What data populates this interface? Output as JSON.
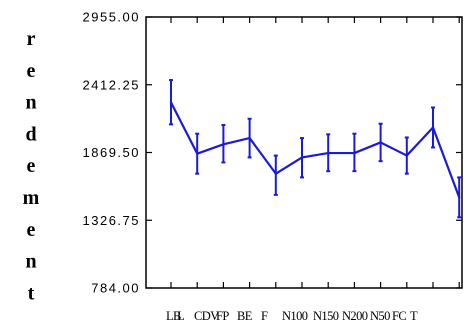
{
  "chart_data": {
    "type": "line",
    "title": "",
    "xlabel": "",
    "ylabel": "rendement",
    "categories": [
      "LB",
      "L",
      "CDV",
      "FP",
      "BE",
      "F",
      "N100",
      "N150",
      "N200",
      "N50",
      "FC",
      "T"
    ],
    "x_tick_labels": [
      "LB",
      "L",
      "CDV",
      "FP",
      "BE",
      "F",
      "N100",
      "N150",
      "N200",
      "N50",
      "FC",
      "T"
    ],
    "series": [
      {
        "values": [
          2271,
          1860,
          1935,
          1985,
          1700,
          1830,
          1865,
          1865,
          1950,
          1845,
          2070,
          1510
        ],
        "error_low": [
          2095,
          1700,
          1790,
          1830,
          1530,
          1670,
          1720,
          1720,
          1800,
          1700,
          1910,
          1350
        ],
        "error_high": [
          2450,
          2020,
          2090,
          2140,
          1845,
          1985,
          2015,
          2020,
          2100,
          1990,
          2230,
          1670
        ]
      }
    ],
    "ylim": [
      784.0,
      2955.0
    ],
    "y_ticks": [
      784.0,
      1326.75,
      1869.5,
      2412.25,
      2955.0
    ],
    "y_tick_labels": [
      "784.00",
      "1326.75",
      "1869.50",
      "2412.25",
      "2955.00"
    ],
    "line_color": "#1a1adc",
    "grid": false,
    "legend": "none"
  }
}
